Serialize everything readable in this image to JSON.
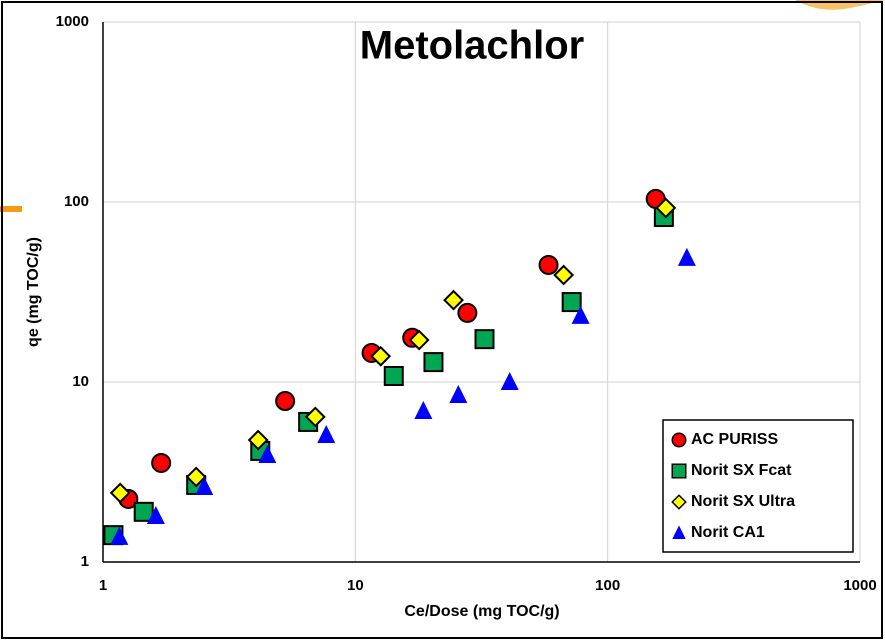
{
  "chart_data": {
    "type": "scatter",
    "title": "Metolachlor",
    "x_label": "Ce/Dose (mg TOC/g)",
    "y_label": "qe (mg TOC/g)",
    "log_x": true,
    "log_y": true,
    "grid": true,
    "legend_position": "lower right",
    "xlim": [
      1,
      1000
    ],
    "ylim": [
      1,
      1000
    ],
    "xticks": [
      1,
      10,
      100,
      1000
    ],
    "yticks": [
      1,
      10,
      100,
      1000
    ],
    "series": [
      {
        "name": "AC PURISS",
        "color": "#ff0000",
        "marker": "circle",
        "x": [
          1.26,
          1.7,
          5.27,
          11.6,
          16.8,
          27.8,
          58.3,
          155
        ],
        "values": [
          2.24,
          3.55,
          7.84,
          14.5,
          17.6,
          24.2,
          44.7,
          104
        ]
      },
      {
        "name": "Norit SX Fcat",
        "color": "#00a651",
        "marker": "square",
        "x": [
          1.1,
          1.45,
          2.34,
          4.2,
          6.5,
          14.2,
          20.4,
          32.5,
          72,
          167
        ],
        "values": [
          1.41,
          1.9,
          2.68,
          4.14,
          6.0,
          10.8,
          12.9,
          17.3,
          27.8,
          82.5
        ]
      },
      {
        "name": "Norit SX Ultra",
        "color": "#ffff00",
        "marker": "diamond",
        "x": [
          1.17,
          2.34,
          4.12,
          6.94,
          12.6,
          17.9,
          24.5,
          66.9,
          170
        ],
        "values": [
          2.42,
          2.97,
          4.76,
          6.4,
          13.9,
          17.1,
          28.5,
          39.3,
          92.7
        ]
      },
      {
        "name": "Norit CA1",
        "color": "#0000ff",
        "marker": "triangle",
        "x": [
          1.16,
          1.62,
          2.52,
          4.48,
          7.67,
          18.6,
          25.6,
          40.9,
          78.1,
          206
        ],
        "values": [
          1.38,
          1.8,
          2.61,
          3.93,
          5.08,
          6.9,
          8.47,
          10,
          23.3,
          48.9
        ]
      }
    ]
  }
}
